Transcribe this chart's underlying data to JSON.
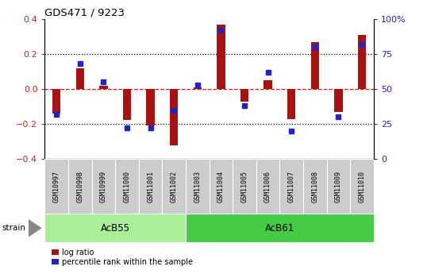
{
  "title": "GDS471 / 9223",
  "samples": [
    "GSM10997",
    "GSM10998",
    "GSM10999",
    "GSM11000",
    "GSM11001",
    "GSM11002",
    "GSM11003",
    "GSM11004",
    "GSM11005",
    "GSM11006",
    "GSM11007",
    "GSM11008",
    "GSM11009",
    "GSM11010"
  ],
  "log_ratio": [
    -0.14,
    0.12,
    0.02,
    -0.175,
    -0.21,
    -0.32,
    0.01,
    0.37,
    -0.07,
    0.05,
    -0.17,
    0.27,
    -0.13,
    0.31
  ],
  "percentile_rank": [
    32,
    68,
    55,
    22,
    22,
    35,
    53,
    92,
    38,
    62,
    20,
    80,
    30,
    82
  ],
  "groups": [
    {
      "name": "AcB55",
      "start": 0,
      "end": 6,
      "color": "#aaee99"
    },
    {
      "name": "AcB61",
      "start": 6,
      "end": 14,
      "color": "#44cc44"
    }
  ],
  "ylim_left": [
    -0.4,
    0.4
  ],
  "ylim_right": [
    0,
    100
  ],
  "yticks_left": [
    -0.4,
    -0.2,
    0.0,
    0.2,
    0.4
  ],
  "yticks_right": [
    0,
    25,
    50,
    75,
    100
  ],
  "bar_color_log": "#aa1111",
  "bar_color_pct": "#2222cc",
  "hline_dotted": [
    -0.2,
    0.2
  ],
  "hline_red": 0.0,
  "legend_log": "log ratio",
  "legend_pct": "percentile rank within the sample",
  "group_label": "strain",
  "bar_width": 0.35
}
